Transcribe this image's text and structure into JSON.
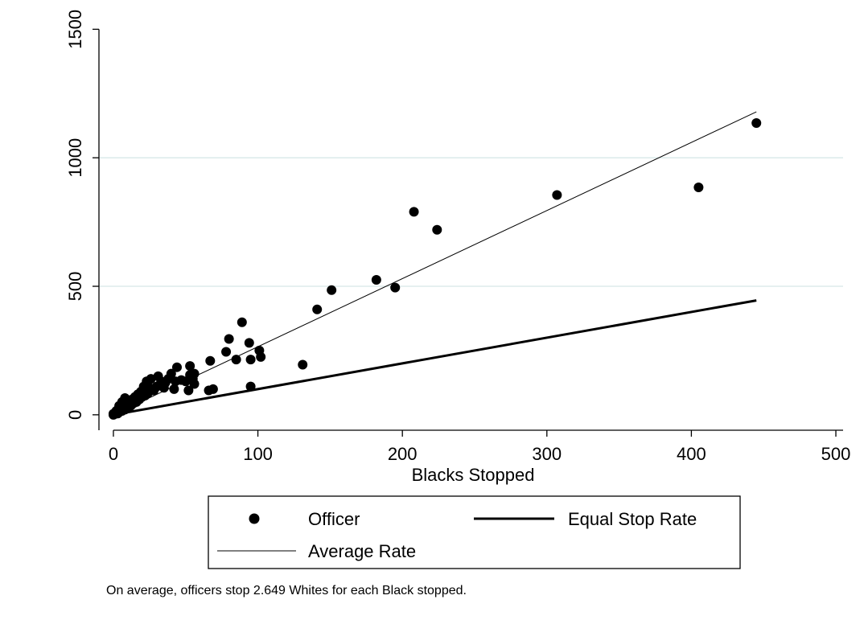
{
  "chart_data": {
    "type": "scatter",
    "xlabel": "Blacks Stopped",
    "ylabel": "",
    "xlim": [
      -10,
      505
    ],
    "ylim": [
      -60,
      1520
    ],
    "x_ticks": [
      0,
      100,
      200,
      300,
      400,
      500
    ],
    "y_ticks": [
      0,
      500,
      1000,
      1500
    ],
    "grid_y": [
      500,
      1000
    ],
    "legend_position": "bottom",
    "legend": [
      {
        "key": "officer",
        "label": "Officer",
        "marker": "dot"
      },
      {
        "key": "equal",
        "label": "Equal Stop Rate",
        "marker": "thick-line"
      },
      {
        "key": "average",
        "label": "Average Rate",
        "marker": "thin-line"
      }
    ],
    "note": "On average, officers stop 2.649 Whites for each Black stopped.",
    "series": [
      {
        "name": "Officer",
        "points": [
          [
            445,
            1135
          ],
          [
            405,
            885
          ],
          [
            307,
            855
          ],
          [
            208,
            790
          ],
          [
            224,
            720
          ],
          [
            182,
            525
          ],
          [
            195,
            495
          ],
          [
            151,
            485
          ],
          [
            141,
            410
          ],
          [
            131,
            195
          ],
          [
            101,
            250
          ],
          [
            102,
            225
          ],
          [
            94,
            280
          ],
          [
            95,
            215
          ],
          [
            95,
            110
          ],
          [
            89,
            360
          ],
          [
            85,
            215
          ],
          [
            80,
            295
          ],
          [
            78,
            245
          ],
          [
            69,
            100
          ],
          [
            67,
            210
          ],
          [
            66,
            95
          ],
          [
            56,
            160
          ],
          [
            55,
            140
          ],
          [
            56,
            120
          ],
          [
            53,
            190
          ],
          [
            53,
            155
          ],
          [
            52,
            95
          ],
          [
            50,
            130
          ],
          [
            47,
            135
          ],
          [
            44,
            185
          ],
          [
            43,
            130
          ],
          [
            42,
            100
          ],
          [
            40,
            160
          ],
          [
            38,
            140
          ],
          [
            36,
            125
          ],
          [
            35,
            105
          ],
          [
            33,
            130
          ],
          [
            31,
            150
          ],
          [
            30,
            110
          ],
          [
            28,
            95
          ],
          [
            26,
            140
          ],
          [
            25,
            105
          ],
          [
            24,
            85
          ],
          [
            23,
            130
          ],
          [
            22,
            75
          ],
          [
            21,
            110
          ],
          [
            20,
            70
          ],
          [
            19,
            90
          ],
          [
            18,
            60
          ],
          [
            17,
            80
          ],
          [
            16,
            50
          ],
          [
            15,
            70
          ],
          [
            14,
            45
          ],
          [
            13,
            60
          ],
          [
            12,
            35
          ],
          [
            11,
            55
          ],
          [
            10,
            30
          ],
          [
            9,
            45
          ],
          [
            8,
            65
          ],
          [
            8,
            20
          ],
          [
            7,
            30
          ],
          [
            6,
            50
          ],
          [
            6,
            15
          ],
          [
            5,
            25
          ],
          [
            4,
            10
          ],
          [
            4,
            35
          ],
          [
            3,
            5
          ],
          [
            3,
            20
          ],
          [
            2,
            8
          ],
          [
            2,
            15
          ],
          [
            1,
            3
          ],
          [
            1,
            6
          ],
          [
            0,
            0
          ],
          [
            0,
            4
          ]
        ]
      },
      {
        "name": "Equal Stop Rate",
        "line": [
          [
            0,
            0
          ],
          [
            445,
            445
          ]
        ]
      },
      {
        "name": "Average Rate",
        "line": [
          [
            0,
            0
          ],
          [
            445,
            1178.8
          ]
        ]
      }
    ]
  }
}
